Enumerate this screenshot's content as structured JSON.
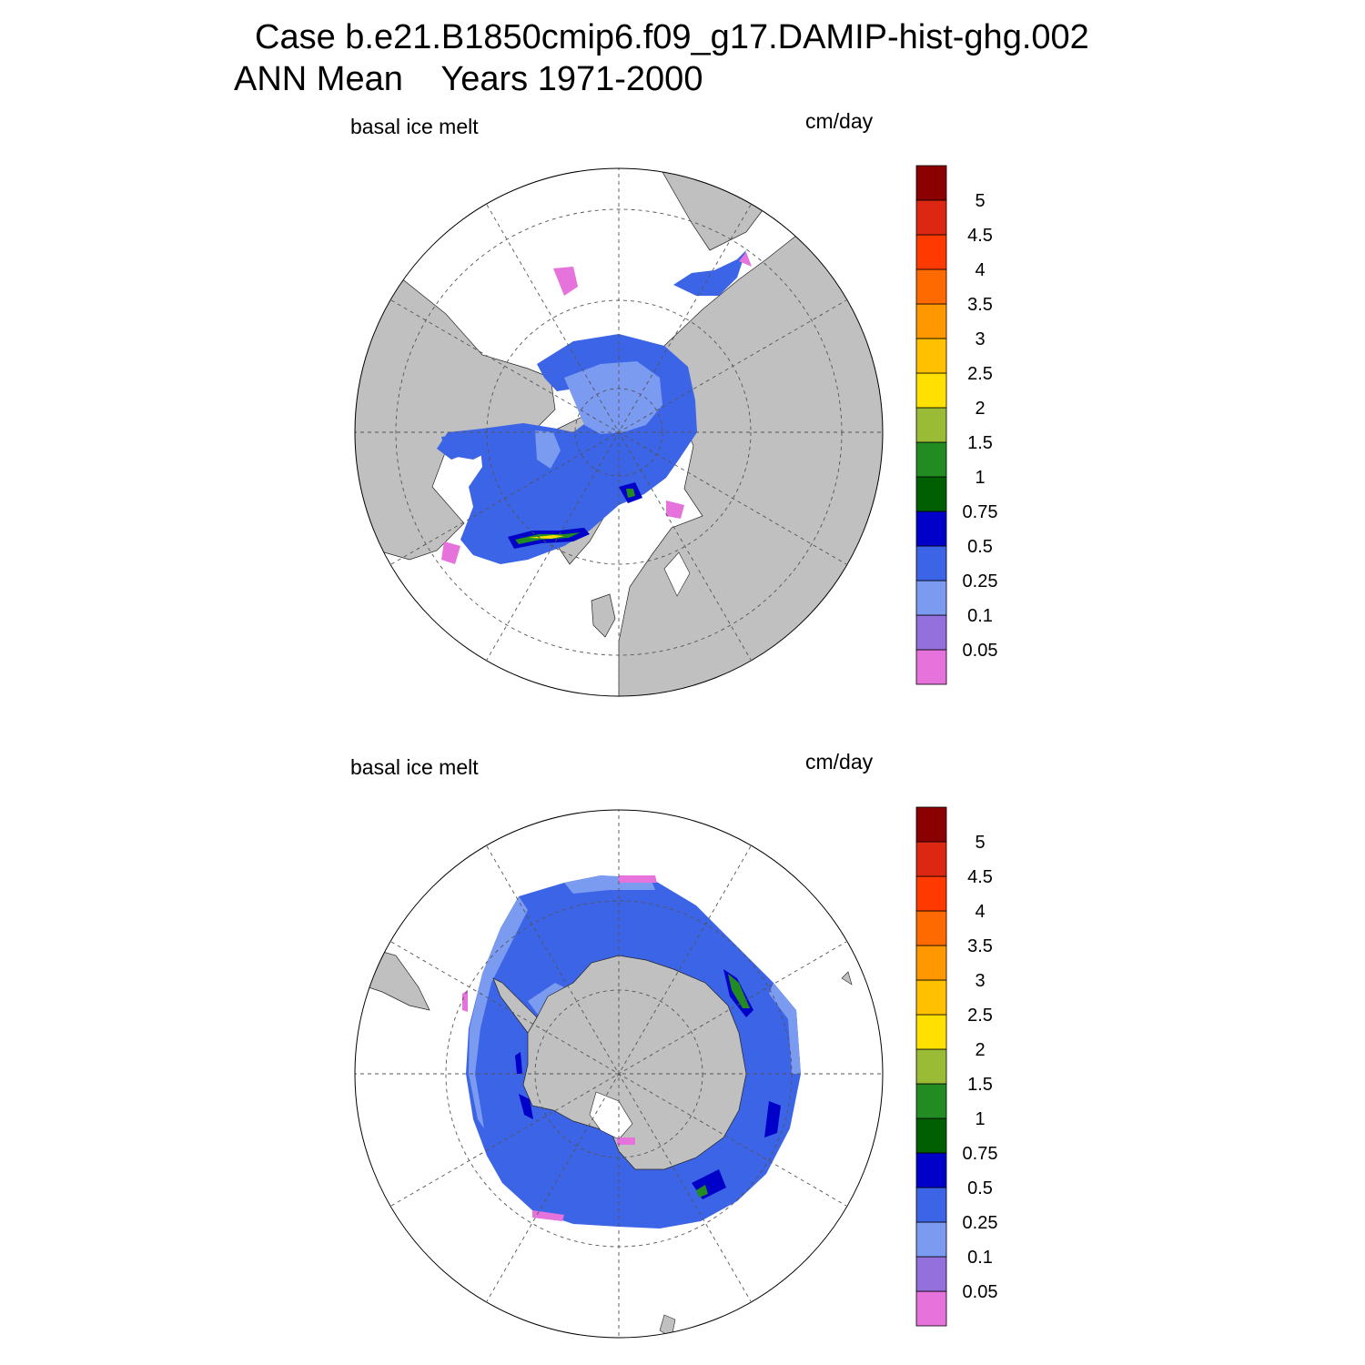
{
  "header": {
    "case_line": "Case b.e21.B1850cmip6.f09_g17.DAMIP-hist-ghg.002",
    "period_line": "ANN Mean    Years 1971-2000"
  },
  "panels": [
    {
      "id": "north",
      "variable": "basal ice melt",
      "units": "cm/day"
    },
    {
      "id": "south",
      "variable": "basal ice melt",
      "units": "cm/day"
    }
  ],
  "legend": {
    "levels": [
      "0.05",
      "0.1",
      "0.25",
      "0.5",
      "0.75",
      "1",
      "1.5",
      "2",
      "2.5",
      "3",
      "3.5",
      "4",
      "4.5",
      "5"
    ],
    "colors": [
      "#e673dc",
      "#9470dc",
      "#7b9bf0",
      "#3c64e6",
      "#0000c8",
      "#005f00",
      "#228b22",
      "#9abb35",
      "#ffe000",
      "#ffc000",
      "#ff9800",
      "#ff6a00",
      "#ff3a00",
      "#dc2812",
      "#8b0000"
    ]
  },
  "palette": {
    "land": "#c0c0c0",
    "ocean": "#ffffff",
    "grid": "#555555"
  }
}
